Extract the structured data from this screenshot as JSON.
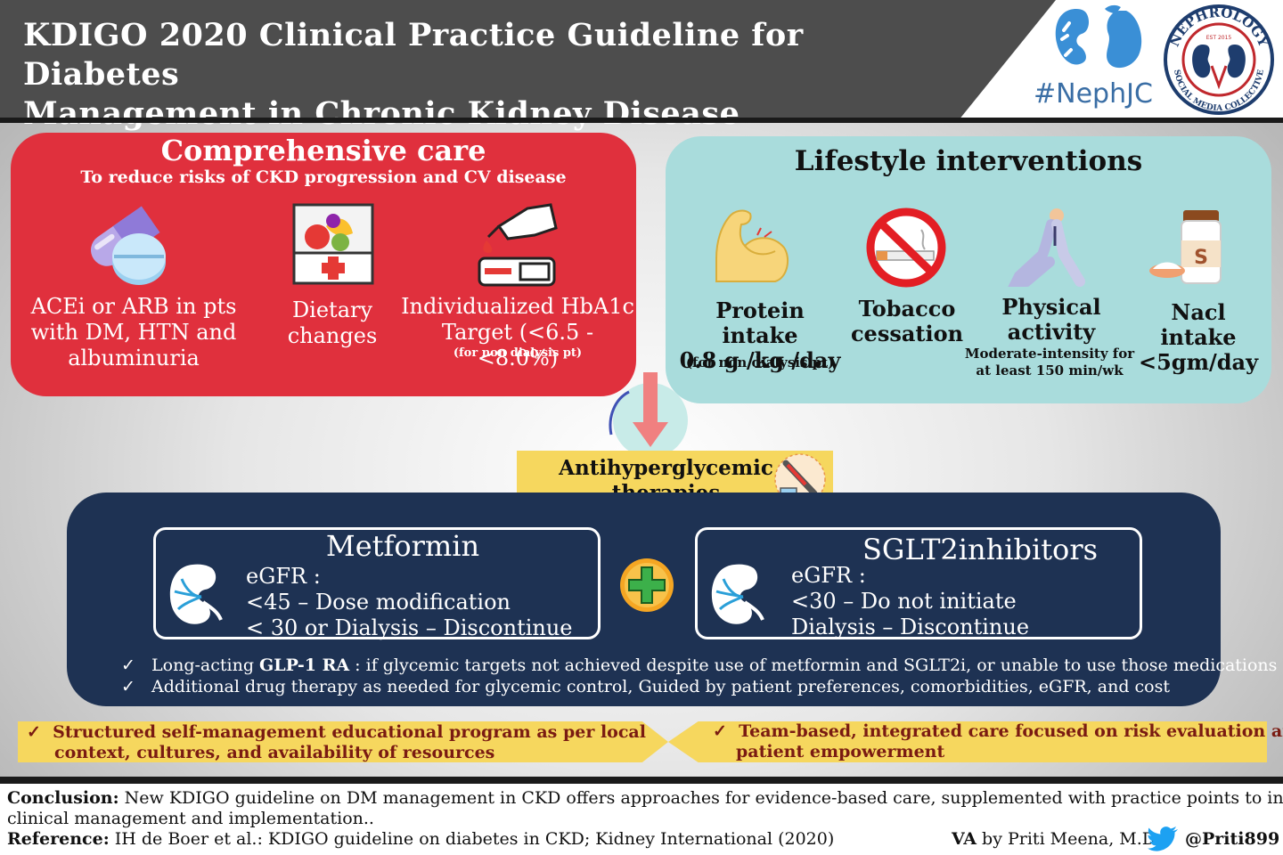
{
  "header": {
    "title_line1": "KDIGO 2020 Clinical Practice Guideline for Diabetes",
    "title_line2": "Management in Chronic Kidney Disease",
    "hashtag": "#NephJC",
    "logo_arc_top": "NEPHROLOGY",
    "logo_arc_bottom": "SOCIAL MEDIA COLLECTIVE",
    "logo_est": "EST 2015"
  },
  "comprehensive_care": {
    "title": "Comprehensive care",
    "subtitle": "To reduce risks of CKD progression and CV disease",
    "items": [
      {
        "icon": "pill-icon",
        "line1": "ACEi or ARB in pts",
        "line2": "with DM, HTN and",
        "line3": "albuminuria"
      },
      {
        "icon": "diet-icon",
        "line1": "Dietary",
        "line2": "changes"
      },
      {
        "icon": "glucometer-icon",
        "line1": "Individualized HbA1c",
        "line2": "Target (<6.5 - <8.0%)",
        "note": "(for non dialysis pt)"
      }
    ]
  },
  "lifestyle": {
    "title": "Lifestyle interventions",
    "items": [
      {
        "icon": "muscle-arm-icon",
        "line1": "Protein intake",
        "line2": "0.8 g /kg /day",
        "note": "(for non dialysis pt)"
      },
      {
        "icon": "no-smoking-icon",
        "line1": "Tobacco",
        "line2": "cessation"
      },
      {
        "icon": "yoga-person-icon",
        "line1": "Physical",
        "line2": "activity",
        "note1": "Moderate-intensity for",
        "note2": "at least 150 min/wk"
      },
      {
        "icon": "salt-jar-icon",
        "line1": "Nacl intake",
        "line2": "<5gm/day",
        "jar_letter": "S"
      }
    ]
  },
  "antihyperglycemic": {
    "line1": "Antihyperglycemic",
    "line2": "therapies"
  },
  "therapies": {
    "metformin": {
      "name": "Metformin",
      "egfr": "eGFR :",
      "rule1": "<45 – Dose modification",
      "rule2": "< 30 or Dialysis – Discontinue"
    },
    "sglt2": {
      "name": "SGLT2inhibitors",
      "egfr": "eGFR :",
      "rule1": "<30 – Do not initiate",
      "rule2": "Dialysis – Discontinue"
    },
    "bullets": [
      {
        "check": "✓",
        "pre": "Long-acting ",
        "bold": "GLP-1 RA",
        "post": " : if glycemic targets not achieved  despite use of metformin and SGLT2i, or unable to use  those medications"
      },
      {
        "check": "✓",
        "pre": "Additional drug therapy as needed for glycemic control, Guided by patient preferences, comorbidities, eGFR, and cost",
        "bold": "",
        "post": ""
      }
    ]
  },
  "support": {
    "left": {
      "check": "✓",
      "line1": "Structured self-management educational program as per  local",
      "line2": "context, cultures, and availability of resources"
    },
    "right": {
      "check": "✓",
      "line1": "Team-based, integrated care focused on risk evaluation and",
      "line2": "patient empowerment"
    }
  },
  "footer": {
    "conclusion_label": "Conclusion:",
    "conclusion_text1": " New KDIGO guideline on DM management in CKD offers approaches for  evidence-based care, supplemented with practice points to inform",
    "conclusion_text2": "clinical management and implementation..",
    "reference_label": "Reference:",
    "reference_text": "  IH de Boer et al.: KDIGO guideline on diabetes in CKD; Kidney International (2020)",
    "va_label": "VA",
    "author": " by Priti Meena, M.D",
    "twitter_handle": "@Priti899"
  },
  "colors": {
    "care_red": "#e0303d",
    "lifestyle_teal": "#a9dcdc",
    "therapy_navy": "#1e3253",
    "accent_yellow": "#f6d75e",
    "header_gray": "#4d4d4d"
  }
}
